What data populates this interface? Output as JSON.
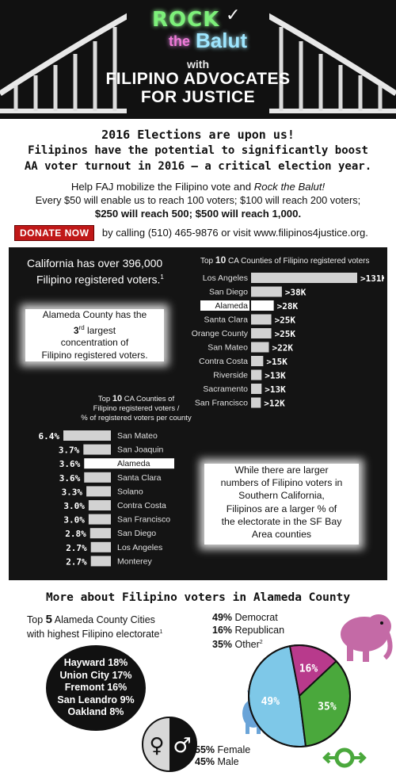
{
  "header": {
    "logo_rock": "ROCK",
    "logo_the": "the",
    "logo_balut": "Balut",
    "with": "with",
    "org_line1": "FILIPINO ADVOCATES",
    "org_line2": "FOR JUSTICE"
  },
  "intro": {
    "headline_1": "2016 Elections are upon us!",
    "headline_2": "Filipinos have the potential to significantly boost",
    "headline_3": "AA voter turnout in 2016 – a critical election year.",
    "help_text_a": "Help FAJ mobilize the Filipino vote and ",
    "help_text_em": "Rock the Balut!",
    "donation_line_1": "Every $50 will enable us to reach 100 voters; $100 will reach 200 voters;",
    "donation_line_2": "$250 will reach 500; $500 will reach 1,000.",
    "donate_button": "DONATE NOW",
    "contact_text": "by calling (510) 465-9876 or visit www.filipinos4justice.org."
  },
  "callouts": {
    "ca_total_1": "California has over 396,000",
    "ca_total_2": "Filipino registered voters.",
    "ca_total_sup": "1",
    "alameda_a": "Alameda County has the",
    "alameda_b_num": "3",
    "alameda_b_sup": "rd",
    "alameda_b_rest": " largest",
    "alameda_c": "concentration of",
    "alameda_d": "Filipino registered voters.",
    "bay_1": "While there are larger",
    "bay_2": "numbers of Filipino voters in",
    "bay_3": "Southern California,",
    "bay_4": "Filipinos are a larger % of",
    "bay_5": "the electorate in the SF Bay",
    "bay_6": "Area counties"
  },
  "colors": {
    "highlight": "#ffffff",
    "bar": "#d2d2d2",
    "democrat": "#7ec8e8",
    "republican": "#b83a8c",
    "other": "#4aa83c",
    "elephant": "#c46aa6",
    "donkey": "#6aa4d8",
    "donate": "#c01818"
  },
  "chart_data": [
    {
      "type": "bar",
      "title_a": "Top ",
      "title_num": "10",
      "title_b": " CA Counties of Filipino registered voters",
      "categories": [
        "Los Angeles",
        "San Diego",
        "Alameda",
        "Santa Clara",
        "Orange County",
        "San Mateo",
        "Contra Costa",
        "Riverside",
        "Sacramento",
        "San Francisco"
      ],
      "values": [
        131,
        38,
        28,
        25,
        25,
        22,
        15,
        13,
        13,
        12
      ],
      "value_labels": [
        ">131K",
        ">38K",
        ">28K",
        ">25K",
        ">25K",
        ">22K",
        ">15K",
        ">13K",
        ">13K",
        ">12K"
      ],
      "highlight": "Alameda",
      "unit": "K"
    },
    {
      "type": "bar",
      "title_1a": "Top ",
      "title_1num": "10",
      "title_1b": " CA Counties of",
      "title_2": "Filipino registered voters /",
      "title_3": "% of registered voters per county",
      "categories": [
        "San Mateo",
        "San Joaquin",
        "Alameda",
        "Santa Clara",
        "Solano",
        "Contra Costa",
        "San Francisco",
        "San Diego",
        "Los Angeles",
        "Monterey"
      ],
      "values": [
        6.4,
        3.7,
        3.6,
        3.6,
        3.3,
        3.0,
        3.0,
        2.8,
        2.7,
        2.7
      ],
      "value_labels": [
        "6.4%",
        "3.7%",
        "3.6%",
        "3.6%",
        "3.3%",
        "3.0%",
        "3.0%",
        "2.8%",
        "2.7%",
        "2.7%"
      ],
      "highlight": "Alameda",
      "unit": "%"
    },
    {
      "type": "pie",
      "categories": [
        "Democrat",
        "Republican",
        "Other"
      ],
      "values": [
        49,
        16,
        35
      ],
      "value_labels": [
        "49%",
        "16%",
        "35%"
      ]
    }
  ],
  "alameda_section": {
    "title": "More about Filipino voters in Alameda County",
    "cities_title_a": "Top ",
    "cities_title_num": "5",
    "cities_title_b": " Alameda County Cities",
    "cities_title_2": "with highest Filipino electorate",
    "cities_sup": "1",
    "cities": [
      {
        "name": "Hayward",
        "pct": "18%"
      },
      {
        "name": "Union City",
        "pct": "17%"
      },
      {
        "name": "Fremont",
        "pct": "16%"
      },
      {
        "name": "San Leandro",
        "pct": "9%"
      },
      {
        "name": "Oakland",
        "pct": "8%"
      }
    ],
    "party_dem_pct": "49%",
    "party_dem": "Democrat",
    "party_rep_pct": "16%",
    "party_rep": "Republican",
    "party_oth_pct": "35%",
    "party_oth": "Other",
    "party_oth_sup": "2",
    "female_pct": "55%",
    "female": "Female",
    "male_pct": "45%",
    "male": "Male",
    "female_symbol": "♀",
    "male_symbol": "♂"
  }
}
